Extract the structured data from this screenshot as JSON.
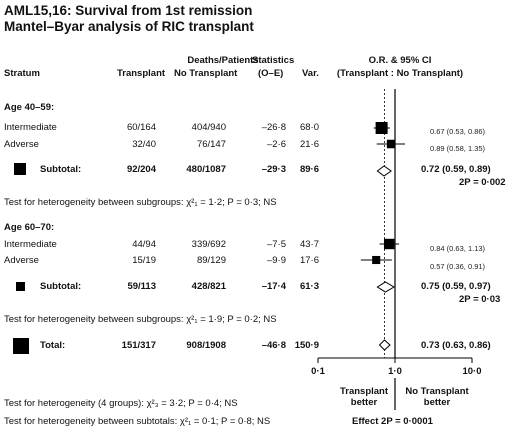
{
  "title": {
    "line1": "AML15,16: Survival from 1st remission",
    "line2": "Mantel–Byar analysis of RIC transplant"
  },
  "header": {
    "stratum": "Stratum",
    "deaths_patients": "Deaths/Patients",
    "transplant": "Transplant",
    "no_transplant": "No Transplant",
    "statistics": "Statistics",
    "o_e": "(O–E)",
    "var": "Var.",
    "or_ci": "O.R. & 95% CI",
    "or_sub": "(Transplant : No Transplant)"
  },
  "groups": [
    {
      "label": "Age 40–59:",
      "rows": [
        {
          "name": "Intermediate",
          "transplant": "60/164",
          "no_transplant": "404/940",
          "oe": "–26·8",
          "var": "68·0",
          "ci_text": "0.67 (0.53, 0.86)"
        },
        {
          "name": "Adverse",
          "transplant": "32/40",
          "no_transplant": "76/147",
          "oe": "–2·6",
          "var": "21·6",
          "ci_text": "0.89 (0.58, 1.35)"
        }
      ],
      "subtotal": {
        "name": "Subtotal:",
        "transplant": "92/204",
        "no_transplant": "480/1087",
        "oe": "–29·3",
        "var": "89·6",
        "ci_text": "0.72 (0.59, 0.89)",
        "p_text": "2P = 0·002"
      },
      "heterogeneity": "Test for heterogeneity between subgroups: χ²₁ = 1·2; P = 0·3; NS"
    },
    {
      "label": "Age 60–70:",
      "rows": [
        {
          "name": "Intermediate",
          "transplant": "44/94",
          "no_transplant": "339/692",
          "oe": "–7·5",
          "var": "43·7",
          "ci_text": "0.84 (0.63, 1.13)"
        },
        {
          "name": "Adverse",
          "transplant": "15/19",
          "no_transplant": "89/129",
          "oe": "–9·9",
          "var": "17·6",
          "ci_text": "0.57 (0.36, 0.91)"
        }
      ],
      "subtotal": {
        "name": "Subtotal:",
        "transplant": "59/113",
        "no_transplant": "428/821",
        "oe": "–17·4",
        "var": "61·3",
        "ci_text": "0.75 (0.59, 0.97)",
        "p_text": "2P = 0·03"
      },
      "heterogeneity": "Test for heterogeneity between subgroups: χ²₁ = 1·9; P = 0·2; NS"
    }
  ],
  "total": {
    "name": "Total:",
    "transplant": "151/317",
    "no_transplant": "908/1908",
    "oe": "–46·8",
    "var": "150·9",
    "ci_text": "0.73 (0.63, 0.86)"
  },
  "footer": {
    "het4": "Test for heterogeneity (4 groups): χ²₃ = 3·2; P = 0·4; NS",
    "het_subtotals": "Test for heterogeneity between subtotals: χ²₁ = 0·1; P = 0·8; NS",
    "effect": "Effect 2P = 0·0001",
    "left_better_1": "Transplant",
    "left_better_2": "better",
    "right_better_1": "No Transplant",
    "right_better_2": "better"
  },
  "chart_data": {
    "type": "forest",
    "x_scale": "log",
    "xlim": [
      0.1,
      10
    ],
    "x_ticks": [
      "0·1",
      "1·0",
      "10·0"
    ],
    "reference_line": 1.0,
    "overall_estimate_line": 0.73,
    "estimates": [
      {
        "label": "Age 40–59: Intermediate",
        "or": 0.67,
        "lo": 0.53,
        "hi": 0.86,
        "kind": "square",
        "var": 68.0
      },
      {
        "label": "Age 40–59: Adverse",
        "or": 0.89,
        "lo": 0.58,
        "hi": 1.35,
        "kind": "square",
        "var": 21.6
      },
      {
        "label": "Age 40–59: Subtotal",
        "or": 0.72,
        "lo": 0.59,
        "hi": 0.89,
        "kind": "diamond"
      },
      {
        "label": "Age 60–70: Intermediate",
        "or": 0.84,
        "lo": 0.63,
        "hi": 1.13,
        "kind": "square",
        "var": 43.7
      },
      {
        "label": "Age 60–70: Adverse",
        "or": 0.57,
        "lo": 0.36,
        "hi": 0.91,
        "kind": "square",
        "var": 17.6
      },
      {
        "label": "Age 60–70: Subtotal",
        "or": 0.75,
        "lo": 0.59,
        "hi": 0.97,
        "kind": "diamond"
      },
      {
        "label": "Total",
        "or": 0.73,
        "lo": 0.63,
        "hi": 0.86,
        "kind": "diamond"
      }
    ]
  }
}
